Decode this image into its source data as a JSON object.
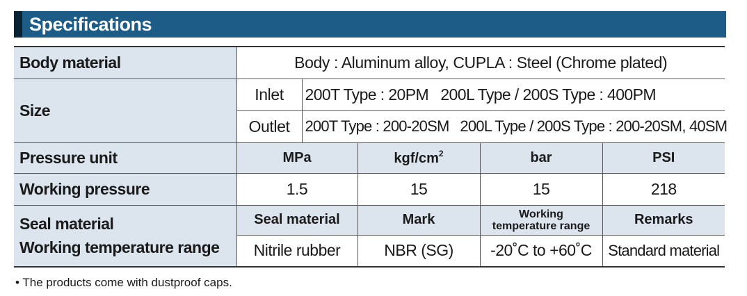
{
  "title": "Specifications",
  "rows": {
    "body_material": {
      "label": "Body material",
      "value": "Body : Aluminum alloy, CUPLA : Steel (Chrome plated)"
    },
    "size": {
      "label": "Size",
      "inlet_label": "Inlet",
      "inlet_value": "200T Type : 20PM   200L Type / 200S Type : 400PM",
      "outlet_label": "Outlet",
      "outlet_value": "200T Type : 200-20SM   200L Type / 200S Type : 200-20SM, 40SM"
    },
    "pressure_unit": {
      "label": "Pressure unit",
      "units": [
        "MPa",
        "kgf/cm",
        "bar",
        "PSI"
      ],
      "kgf_superscript": "2"
    },
    "working_pressure": {
      "label": "Working pressure",
      "values": [
        "1.5",
        "15",
        "15",
        "218"
      ]
    },
    "seal": {
      "label_line1": "Seal material",
      "label_line2": "Working temperature range",
      "headers": [
        "Seal material",
        "Mark",
        "Working temperature range",
        "Remarks"
      ],
      "header_temp_line1": "Working",
      "header_temp_line2": "temperature range",
      "values": [
        "Nitrile rubber",
        "NBR (SG)",
        "-20˚C to +60˚C",
        "Standard material"
      ]
    }
  },
  "note": "• The products come with dustproof caps.",
  "colors": {
    "title_bar": "#1c5c86",
    "title_accent": "#0b2233",
    "label_bg": "#dce5ee"
  }
}
